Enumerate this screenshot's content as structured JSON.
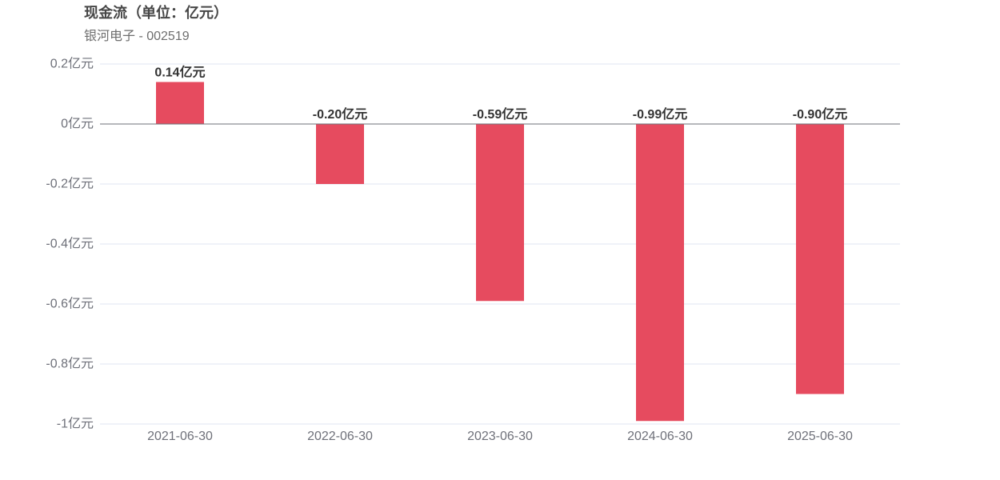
{
  "header": {
    "title": "现金流（单位：亿元）",
    "subtitle": "银河电子 - 002519"
  },
  "colors": {
    "bar": "#e64b5f",
    "grid": "#e0e6f1",
    "zero_line": "#6e7079",
    "axis_text": "#6e7079",
    "label_text": "#333333"
  },
  "chart_data": {
    "type": "bar",
    "title": "现金流（单位：亿元）",
    "subtitle": "银河电子 - 002519",
    "categories": [
      "2021-06-30",
      "2022-06-30",
      "2023-06-30",
      "2024-06-30",
      "2025-06-30"
    ],
    "values": [
      0.14,
      -0.2,
      -0.59,
      -0.99,
      -0.9
    ],
    "data_labels": [
      "0.14亿元",
      "-0.20亿元",
      "-0.59亿元",
      "-0.99亿元",
      "-0.90亿元"
    ],
    "ylim": [
      -1,
      0.2
    ],
    "y_ticks": [
      0.2,
      0,
      -0.2,
      -0.4,
      -0.6,
      -0.8,
      -1
    ],
    "y_tick_labels": [
      "0.2亿元",
      "0亿元",
      "-0.2亿元",
      "-0.4亿元",
      "-0.6亿元",
      "-0.8亿元",
      "-1亿元"
    ],
    "xlabel": "",
    "ylabel": "",
    "grid": true,
    "legend": "none"
  }
}
